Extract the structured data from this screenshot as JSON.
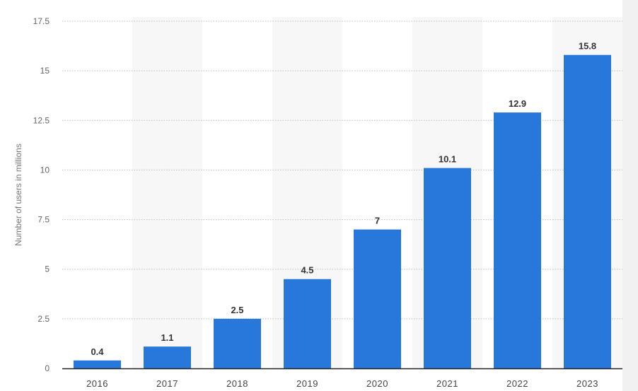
{
  "chart_data": {
    "type": "bar",
    "categories": [
      "2016",
      "2017",
      "2018",
      "2019",
      "2020",
      "2021",
      "2022",
      "2023"
    ],
    "values": [
      0.4,
      1.1,
      2.5,
      4.5,
      7,
      10.1,
      12.9,
      15.8
    ],
    "value_labels": [
      "0.4",
      "1.1",
      "2.5",
      "4.5",
      "7",
      "10.1",
      "12.9",
      "15.8"
    ],
    "ylabel": "Number of users in millions",
    "xlabel": "",
    "ylim": [
      0,
      17.5
    ],
    "yticks": [
      0,
      2.5,
      5,
      7.5,
      10,
      12.5,
      15,
      17.5
    ],
    "ytick_labels": [
      "0",
      "2.5",
      "5",
      "7.5",
      "10",
      "12.5",
      "15",
      "17.5"
    ],
    "grid": true,
    "legend": "none",
    "colors": {
      "bar": "#2878dc",
      "band": "#f7f7f7"
    }
  }
}
